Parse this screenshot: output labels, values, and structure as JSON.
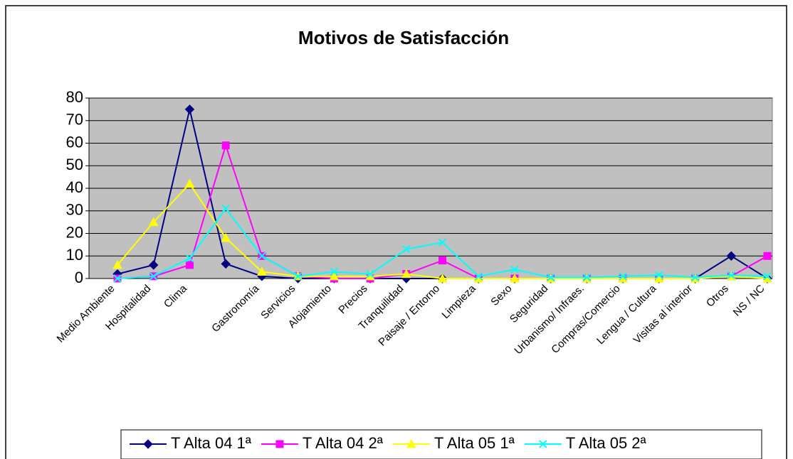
{
  "chart_data": {
    "type": "line",
    "title": "Motivos de Satisfacción",
    "categories": [
      "Medio Ambiente",
      "Hospitalidad",
      "Clima",
      null,
      "Gastronomía",
      "Servicios",
      "Alojamiento",
      "Precios",
      "Tranquilidad",
      "Paisaje / Entorno",
      "Limpieza",
      "Sexo",
      "Seguridad",
      "Urbanismo/ Infraes.",
      "Compras/Comercio",
      "Lengua / Cultura",
      "Visitas al interior",
      "Otros",
      "NS / NC"
    ],
    "series": [
      {
        "name": "T Alta 04 1ª",
        "color": "#000080",
        "marker": "diamond",
        "values": [
          2,
          6,
          75,
          6.5,
          1,
          0,
          0,
          0,
          0,
          0,
          0,
          0,
          0,
          0,
          0,
          0,
          0,
          10,
          0
        ]
      },
      {
        "name": "T Alta 04 2ª",
        "color": "#ff00ff",
        "marker": "square",
        "values": [
          0,
          1,
          6,
          59,
          10,
          1,
          0,
          0,
          2,
          8,
          0,
          0,
          0,
          0,
          0,
          0,
          0,
          1,
          10
        ]
      },
      {
        "name": "T Alta 05 1ª",
        "color": "#ffff00",
        "marker": "triangle",
        "values": [
          6,
          25,
          42,
          18,
          3,
          1,
          1,
          1,
          2,
          0,
          0,
          0,
          0,
          0,
          0,
          0,
          0,
          1,
          0
        ]
      },
      {
        "name": "T Alta 05 2ª",
        "color": "#00ffff",
        "marker": "x",
        "values": [
          0,
          1,
          9,
          31,
          10,
          1,
          3,
          2,
          13,
          16,
          1,
          4,
          0.5,
          0.5,
          1,
          1.5,
          0.5,
          1.5,
          1
        ]
      }
    ],
    "ylim": [
      0,
      80
    ],
    "yticks": [
      0,
      10,
      20,
      30,
      40,
      50,
      60,
      70,
      80
    ],
    "grid": true,
    "legend": "bottom"
  }
}
